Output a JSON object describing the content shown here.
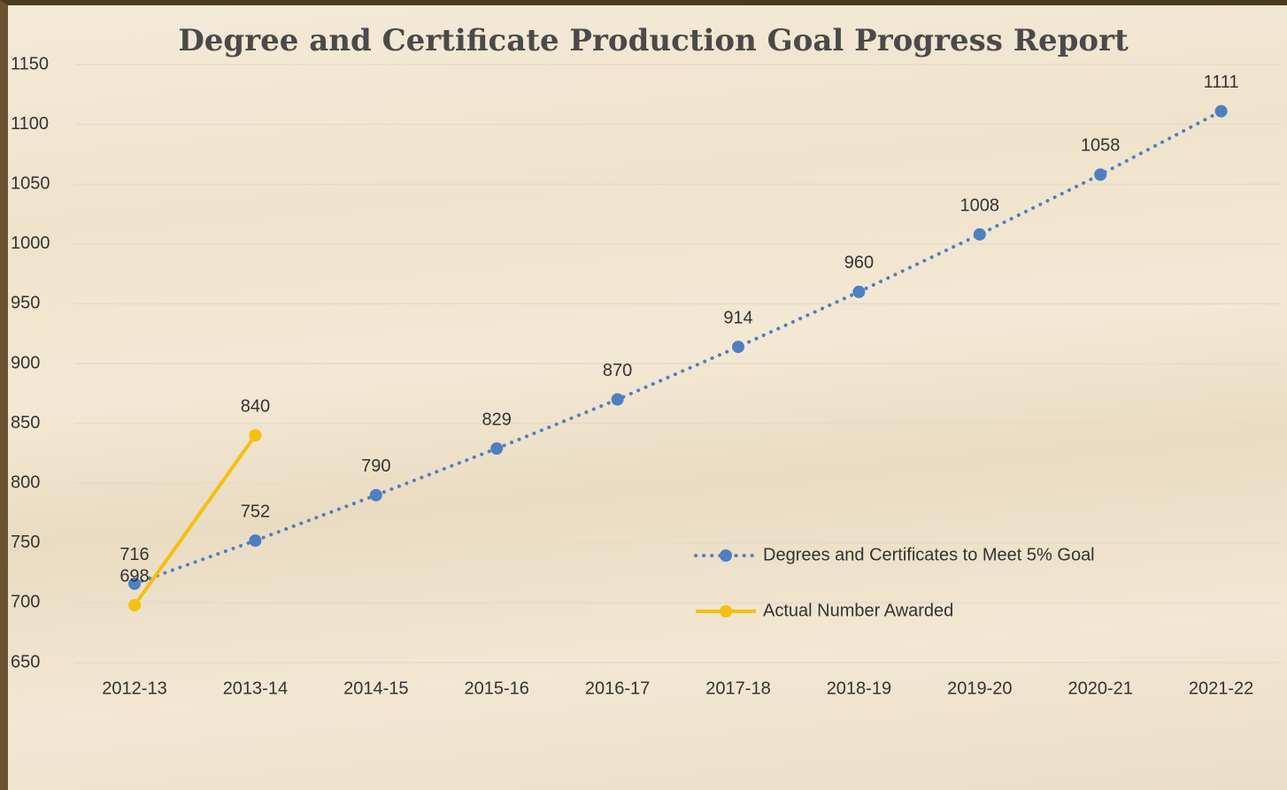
{
  "chart_data": {
    "type": "line",
    "title": "Degree and Certificate Production Goal Progress Report",
    "categories": [
      "2012-13",
      "2013-14",
      "2014-15",
      "2015-16",
      "2016-17",
      "2017-18",
      "2018-19",
      "2019-20",
      "2020-21",
      "2021-22"
    ],
    "series": [
      {
        "name": "Degrees and Certificates to Meet 5% Goal",
        "color": "#4e7fc0",
        "style": "dotted",
        "values": [
          716,
          752,
          790,
          829,
          870,
          914,
          960,
          1008,
          1058,
          1111
        ]
      },
      {
        "name": "Actual Number Awarded",
        "color": "#f5c010",
        "style": "solid",
        "values": [
          698,
          840,
          null,
          null,
          null,
          null,
          null,
          null,
          null,
          null
        ]
      }
    ],
    "ylim": [
      650,
      1150
    ],
    "yticks": [
      650,
      700,
      750,
      800,
      850,
      900,
      950,
      1000,
      1050,
      1100,
      1150
    ],
    "grid": true,
    "legend": "lower right"
  }
}
